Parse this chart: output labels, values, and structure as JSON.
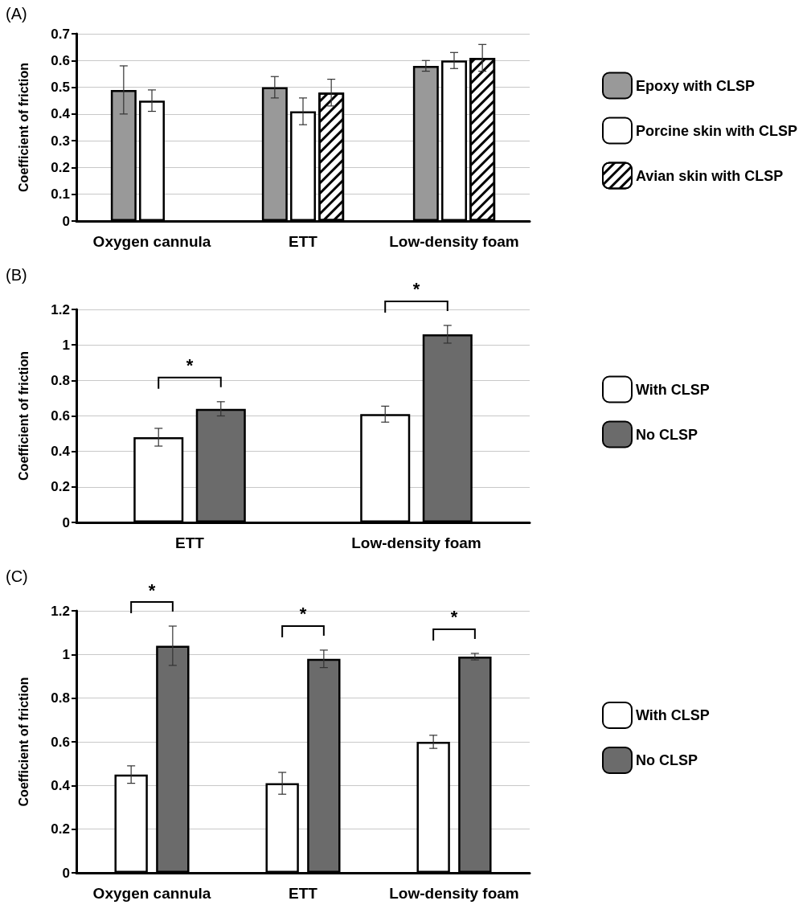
{
  "chart_data": [
    {
      "type": "bar",
      "title": "(A)",
      "ylabel": "Coefficient of friction",
      "categories": [
        "Oxygen cannula",
        "ETT",
        "Low-density foam"
      ],
      "series": [
        {
          "name": "Epoxy with CLSP",
          "color": "#999999",
          "values": [
            0.49,
            0.5,
            0.58
          ],
          "errors": [
            0.09,
            0.04,
            0.02
          ]
        },
        {
          "name": "Porcine skin with CLSP",
          "color": "#ffffff",
          "values": [
            0.45,
            0.41,
            0.6
          ],
          "errors": [
            0.04,
            0.05,
            0.03
          ]
        },
        {
          "name": "Avian skin with CLSP",
          "color": "#ffffff",
          "values": [
            null,
            0.48,
            0.61
          ],
          "errors": [
            null,
            0.05,
            0.05
          ]
        }
      ],
      "ylim": [
        0,
        0.7
      ],
      "yticks": [
        0,
        0.1,
        0.2,
        0.3,
        0.4,
        0.5,
        0.6,
        0.7
      ],
      "grid": "y",
      "legend": "right"
    },
    {
      "type": "bar",
      "title": "(B)",
      "ylabel": "Coefficient of friction",
      "categories": [
        "ETT",
        "Low-density foam"
      ],
      "series": [
        {
          "name": "With CLSP",
          "color": "#ffffff",
          "values": [
            0.48,
            0.61
          ],
          "errors": [
            0.05,
            0.045
          ]
        },
        {
          "name": "No CLSP",
          "color": "#6b6b6b",
          "values": [
            0.64,
            1.06
          ],
          "errors": [
            0.04,
            0.05
          ]
        }
      ],
      "ylim": [
        0,
        1.2
      ],
      "yticks": [
        0,
        0.2,
        0.4,
        0.6,
        0.8,
        1,
        1.2
      ],
      "grid": "y",
      "legend": "right",
      "annotations": [
        "*",
        "*"
      ]
    },
    {
      "type": "bar",
      "title": "(C)",
      "ylabel": "Coefficient of friction",
      "categories": [
        "Oxygen cannula",
        "ETT",
        "Low-density foam"
      ],
      "series": [
        {
          "name": "With CLSP",
          "color": "#ffffff",
          "values": [
            0.45,
            0.41,
            0.6
          ],
          "errors": [
            0.04,
            0.05,
            0.03
          ]
        },
        {
          "name": "No CLSP",
          "color": "#6b6b6b",
          "values": [
            1.04,
            0.98,
            0.99
          ],
          "errors": [
            0.09,
            0.04,
            0.015
          ]
        }
      ],
      "ylim": [
        0,
        1.2
      ],
      "yticks": [
        0,
        0.2,
        0.4,
        0.6,
        0.8,
        1,
        1.2
      ],
      "grid": "y",
      "legend": "right",
      "annotations": [
        "*",
        "*",
        "*"
      ]
    }
  ]
}
